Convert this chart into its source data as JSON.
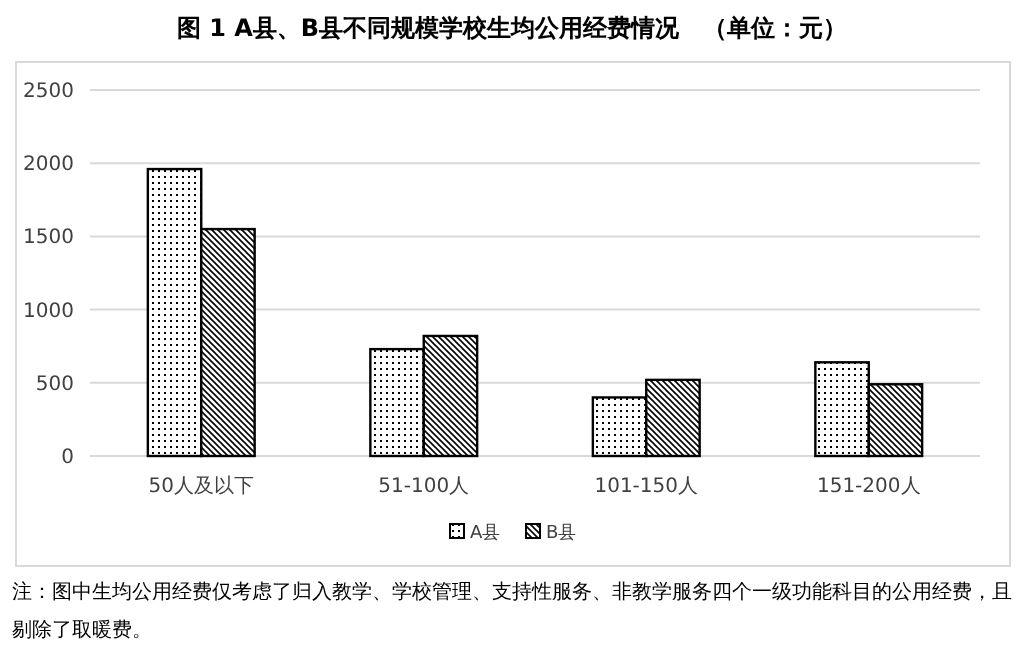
{
  "chart_data": {
    "type": "bar",
    "title": "图 1 A县、B县不同规模学校生均公用经费情况　（单位：元）",
    "categories": [
      "50人及以下",
      "51-100人",
      "101-150人",
      "151-200人"
    ],
    "series": [
      {
        "name": "A县",
        "color": "#000000",
        "values": [
          1960,
          730,
          400,
          640
        ]
      },
      {
        "name": "B县",
        "color": "#000000",
        "values": [
          1550,
          820,
          520,
          490
        ]
      }
    ],
    "ylim": [
      0,
      2500
    ],
    "yticks": [
      0,
      500,
      1000,
      1500,
      2000,
      2500
    ],
    "grid": "y",
    "legend": "bottom",
    "annotations": [
      "注：图中生均公用经费仅考虑了归入教学、学校管理、支持性服务、非教学服务四个一级功能科目的公用经费，且剔除了取暖费。"
    ]
  }
}
